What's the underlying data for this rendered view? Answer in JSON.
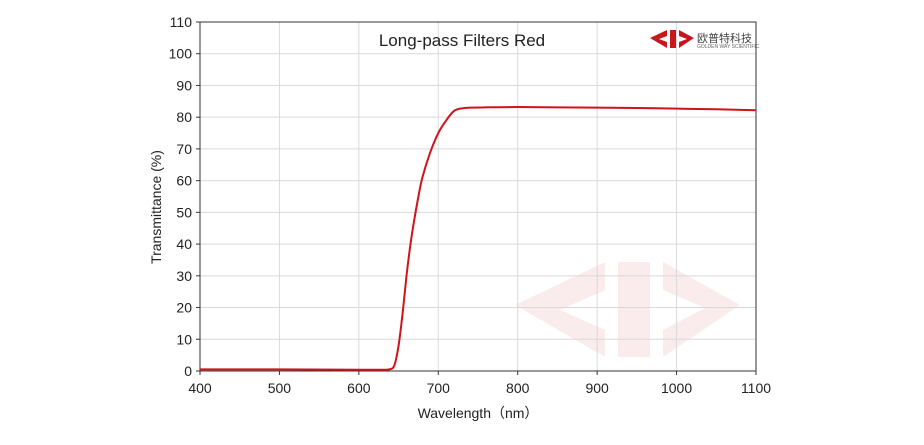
{
  "chart_data": {
    "type": "line",
    "title": "Long-pass  Filters  Red",
    "xlabel": "Wavelength（nm）",
    "ylabel": "Transmittance  (%)",
    "xlim": [
      400,
      1100
    ],
    "ylim": [
      0,
      110
    ],
    "xticks": [
      400,
      500,
      600,
      700,
      800,
      900,
      1000,
      1100
    ],
    "yticks": [
      0,
      10,
      20,
      30,
      40,
      50,
      60,
      70,
      80,
      90,
      100,
      110
    ],
    "grid": true,
    "legend": "none",
    "series": [
      {
        "color": "#d0121b",
        "x": [
          400,
          500,
          600,
          630,
          640,
          645,
          650,
          655,
          660,
          665,
          670,
          675,
          680,
          690,
          700,
          710,
          720,
          730,
          740,
          760,
          800,
          850,
          900,
          950,
          1000,
          1050,
          1100
        ],
        "y": [
          0.5,
          0.5,
          0.4,
          0.4,
          0.6,
          2,
          8,
          18,
          30,
          40,
          48,
          55,
          61,
          69,
          75,
          79,
          82,
          82.8,
          83,
          83.1,
          83.2,
          83.1,
          83.0,
          82.9,
          82.7,
          82.5,
          82.2
        ]
      }
    ]
  },
  "brand": {
    "name": "欧普特科技",
    "tagline": "GOLDEN WAY SCIENTIFIC",
    "accent": "#c8161d"
  }
}
